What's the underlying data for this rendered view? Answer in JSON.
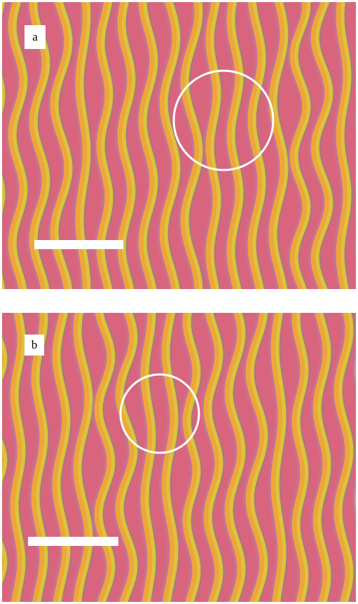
{
  "panels": [
    {
      "label": "a",
      "scale_bar": "white",
      "defect_marker": "white-circle"
    },
    {
      "label": "b",
      "scale_bar": "white",
      "defect_marker": "white-circle"
    }
  ],
  "colors": {
    "magenta": "#d9647e",
    "orange": "#f0a53c",
    "yellow": "#d8cc3a",
    "lavender": "#b283a6",
    "teal": "#6a9a6e"
  }
}
